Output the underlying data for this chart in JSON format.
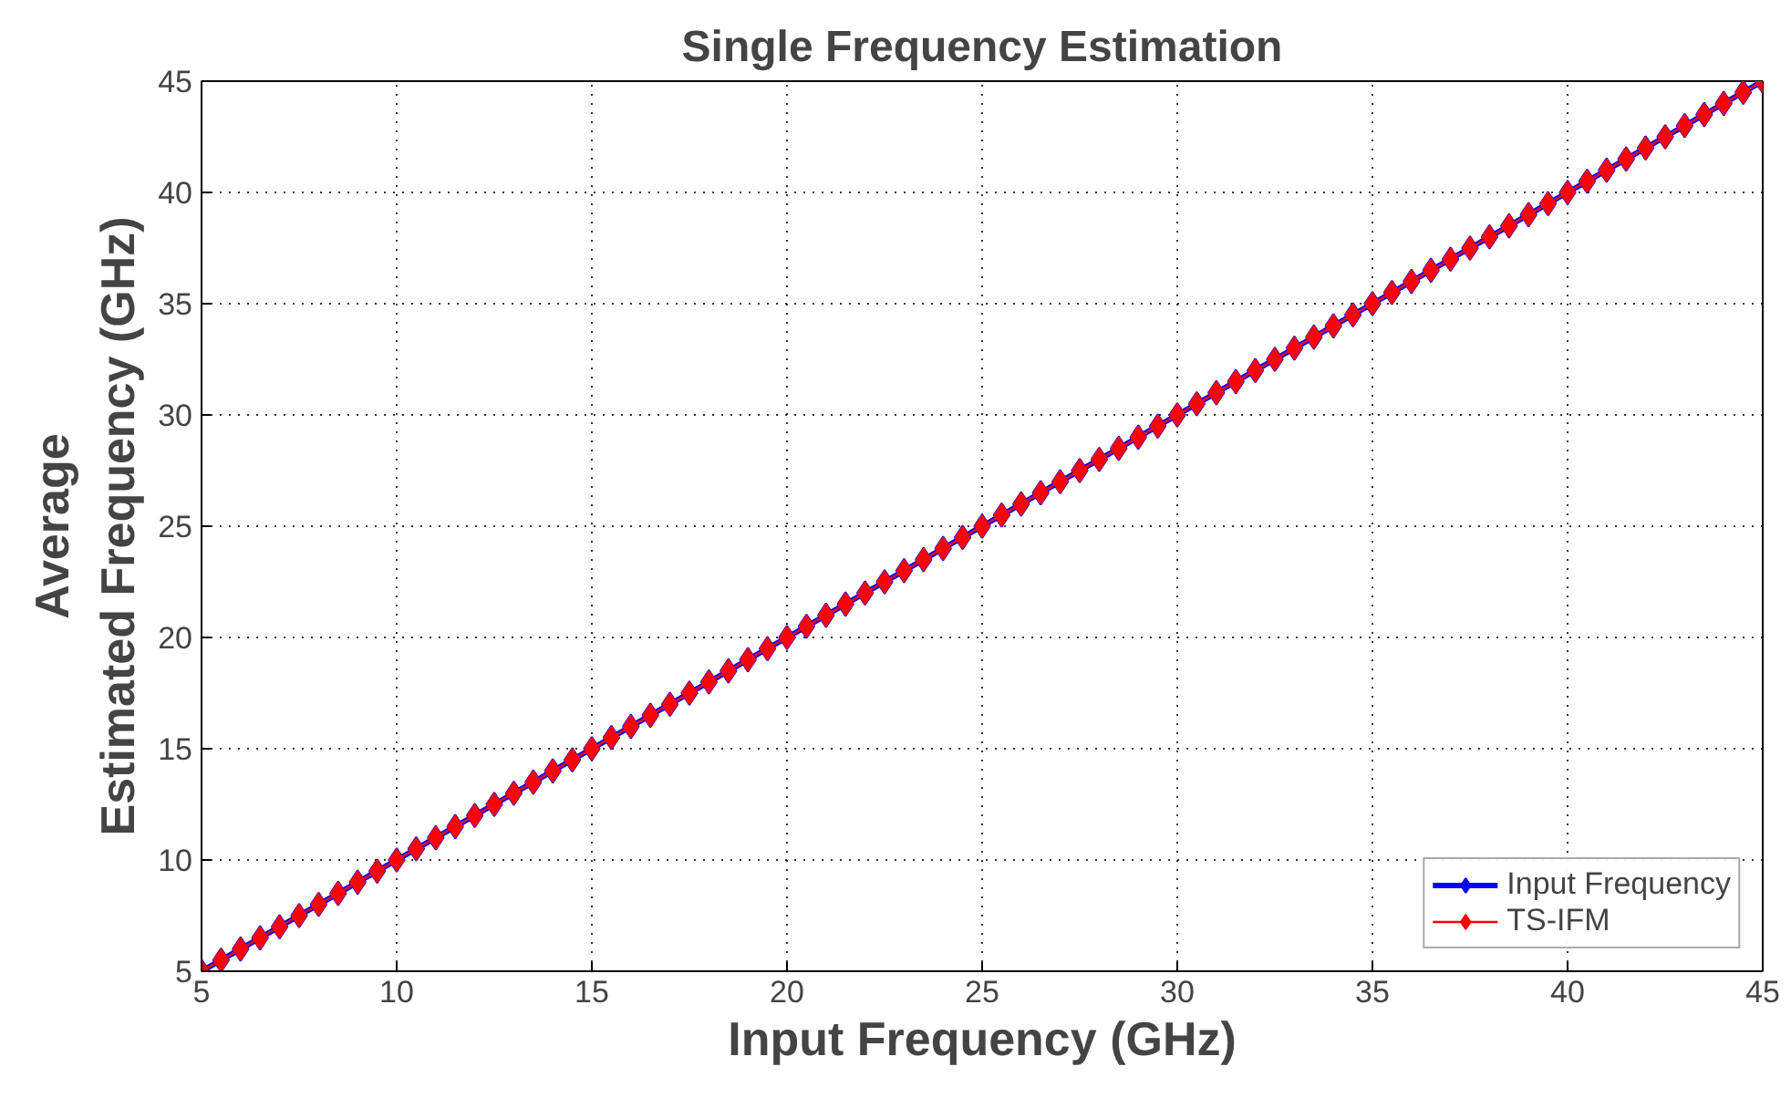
{
  "chart_data": {
    "type": "line",
    "title": "Single Frequency Estimation",
    "xlabel": "Input Frequency (GHz)",
    "ylabel": "Average\nEstimated Frequency (GHz)",
    "x": [
      5,
      5.5,
      6,
      6.5,
      7,
      7.5,
      8,
      8.5,
      9,
      9.5,
      10,
      10.5,
      11,
      11.5,
      12,
      12.5,
      13,
      13.5,
      14,
      14.5,
      15,
      15.5,
      16,
      16.5,
      17,
      17.5,
      18,
      18.5,
      19,
      19.5,
      20,
      20.5,
      21,
      21.5,
      22,
      22.5,
      23,
      23.5,
      24,
      24.5,
      25,
      25.5,
      26,
      26.5,
      27,
      27.5,
      28,
      28.5,
      29,
      29.5,
      30,
      30.5,
      31,
      31.5,
      32,
      32.5,
      33,
      33.5,
      34,
      34.5,
      35,
      35.5,
      36,
      36.5,
      37,
      37.5,
      38,
      38.5,
      39,
      39.5,
      40,
      40.5,
      41,
      41.5,
      42,
      42.5,
      43,
      43.5,
      44,
      44.5,
      45
    ],
    "series": [
      {
        "name": "Input Frequency",
        "color": "#0000ff",
        "values": [
          5,
          5.5,
          6,
          6.5,
          7,
          7.5,
          8,
          8.5,
          9,
          9.5,
          10,
          10.5,
          11,
          11.5,
          12,
          12.5,
          13,
          13.5,
          14,
          14.5,
          15,
          15.5,
          16,
          16.5,
          17,
          17.5,
          18,
          18.5,
          19,
          19.5,
          20,
          20.5,
          21,
          21.5,
          22,
          22.5,
          23,
          23.5,
          24,
          24.5,
          25,
          25.5,
          26,
          26.5,
          27,
          27.5,
          28,
          28.5,
          29,
          29.5,
          30,
          30.5,
          31,
          31.5,
          32,
          32.5,
          33,
          33.5,
          34,
          34.5,
          35,
          35.5,
          36,
          36.5,
          37,
          37.5,
          38,
          38.5,
          39,
          39.5,
          40,
          40.5,
          41,
          41.5,
          42,
          42.5,
          43,
          43.5,
          44,
          44.5,
          45
        ]
      },
      {
        "name": "TS-IFM",
        "color": "#ff0000",
        "values": [
          5,
          5.5,
          6,
          6.5,
          7,
          7.5,
          8,
          8.5,
          9,
          9.5,
          10,
          10.5,
          11,
          11.5,
          12,
          12.5,
          13,
          13.5,
          14,
          14.5,
          15,
          15.5,
          16,
          16.5,
          17,
          17.5,
          18,
          18.5,
          19,
          19.5,
          20,
          20.5,
          21,
          21.5,
          22,
          22.5,
          23,
          23.5,
          24,
          24.5,
          25,
          25.5,
          26,
          26.5,
          27,
          27.5,
          28,
          28.5,
          29,
          29.5,
          30,
          30.5,
          31,
          31.5,
          32,
          32.5,
          33,
          33.5,
          34,
          34.5,
          35,
          35.5,
          36,
          36.5,
          37,
          37.5,
          38,
          38.5,
          39,
          39.5,
          40,
          40.5,
          41,
          41.5,
          42,
          42.5,
          43,
          43.5,
          44,
          44.5,
          45
        ]
      }
    ],
    "xlim": [
      5,
      45
    ],
    "ylim": [
      5,
      45
    ],
    "xticks": [
      5,
      10,
      15,
      20,
      25,
      30,
      35,
      40,
      45
    ],
    "yticks": [
      5,
      10,
      15,
      20,
      25,
      30,
      35,
      40,
      45
    ],
    "grid": true,
    "legend": "bottom right",
    "marker": "diamond",
    "line_style": "solid"
  }
}
